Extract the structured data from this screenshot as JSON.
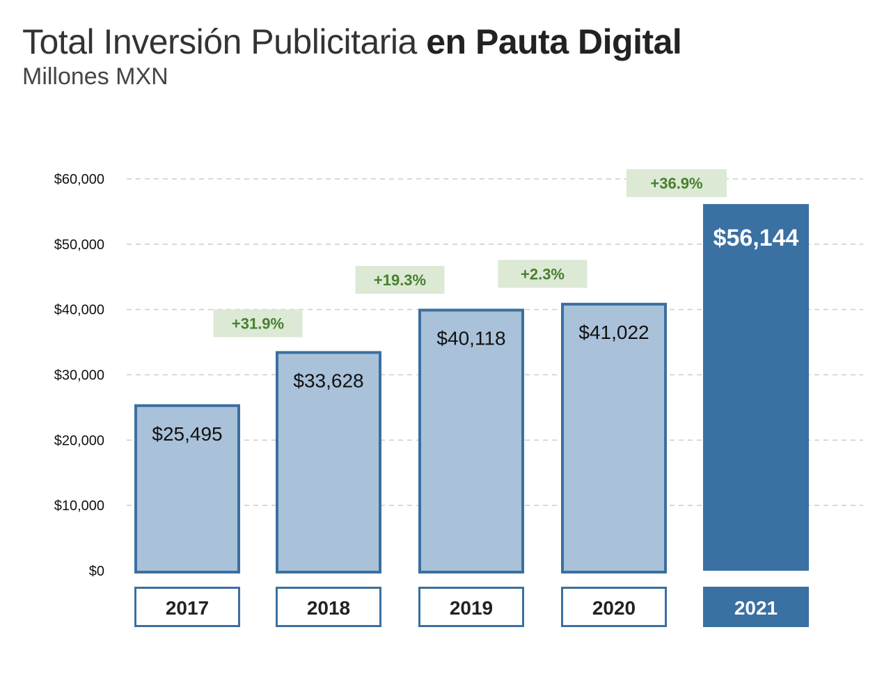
{
  "header": {
    "title_light": "Total Inversión Publicitaria ",
    "title_bold": "en Pauta Digital",
    "subtitle": "Millones MXN"
  },
  "colors": {
    "bar_light_fill": "#a9c2da",
    "bar_stroke": "#3b6fa0",
    "bar_dark_fill": "#3a70a2",
    "growth_bg": "#dbe9d5",
    "growth_text": "#4a7f2e",
    "grid": "#cccccc"
  },
  "chart_data": {
    "type": "bar",
    "title": "Total Inversión Publicitaria en Pauta Digital",
    "subtitle": "Millones MXN",
    "categories": [
      "2017",
      "2018",
      "2019",
      "2020",
      "2021"
    ],
    "values": [
      25495,
      33628,
      40118,
      41022,
      56144
    ],
    "value_labels": [
      "$25,495",
      "$33,628",
      "$40,118",
      "$41,022",
      "$56,144"
    ],
    "growth_labels": [
      "+31.9%",
      "+19.3%",
      "+2.3%",
      "+36.9%"
    ],
    "growth_from_year": [
      "2017",
      "2018",
      "2019",
      "2020"
    ],
    "highlighted_category": "2021",
    "yticks": [
      0,
      10000,
      20000,
      30000,
      40000,
      50000,
      60000
    ],
    "ytick_labels": [
      "$0",
      "$10,000",
      "$20,000",
      "$30,000",
      "$40,000",
      "$50,000",
      "$60,000"
    ],
    "ylim": [
      0,
      60000
    ],
    "grid": true,
    "grid_style": "dashed"
  }
}
